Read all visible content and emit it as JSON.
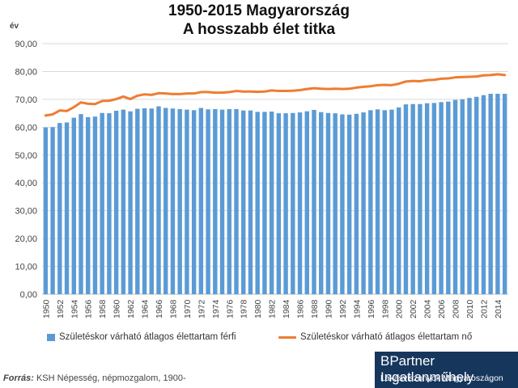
{
  "title_line1": "1950-2015 Magyarország",
  "title_line2": "A hosszabb élet titka",
  "source_label": "Forrás:",
  "source_text": "KSH Népesség, népmozgalom, 1900-",
  "brand_name": "BPartner Ingatlanműhely",
  "brand_tagline": "Lakásviszonyok Magyaroszágon",
  "colors": {
    "bars": "#5b9bd5",
    "line": "#ed7d31",
    "brand_bg": "#16365c"
  },
  "chart_data": {
    "type": "bar+line",
    "ylabel": "év",
    "ylim": [
      0,
      90
    ],
    "y_ticks": [
      "0,00",
      "10,00",
      "20,00",
      "30,00",
      "40,00",
      "50,00",
      "60,00",
      "70,00",
      "80,00",
      "90,00"
    ],
    "x": [
      1950,
      1951,
      1952,
      1953,
      1954,
      1955,
      1956,
      1957,
      1958,
      1959,
      1960,
      1961,
      1962,
      1963,
      1964,
      1965,
      1966,
      1967,
      1968,
      1969,
      1970,
      1971,
      1972,
      1973,
      1974,
      1975,
      1976,
      1977,
      1978,
      1979,
      1980,
      1981,
      1982,
      1983,
      1984,
      1985,
      1986,
      1987,
      1988,
      1989,
      1990,
      1991,
      1992,
      1993,
      1994,
      1995,
      1996,
      1997,
      1998,
      1999,
      2000,
      2001,
      2002,
      2003,
      2004,
      2005,
      2006,
      2007,
      2008,
      2009,
      2010,
      2011,
      2012,
      2013,
      2014,
      2015
    ],
    "x_tick_labels": [
      "1950",
      "1952",
      "1954",
      "1956",
      "1958",
      "1960",
      "1962",
      "1964",
      "1966",
      "1968",
      "1970",
      "1972",
      "1974",
      "1976",
      "1978",
      "1980",
      "1982",
      "1984",
      "1986",
      "1988",
      "1990",
      "1992",
      "1994",
      "1996",
      "1998",
      "2000",
      "2002",
      "2004",
      "2006",
      "2008",
      "2010",
      "2012",
      "2014"
    ],
    "series": [
      {
        "name": "Születéskor várható átlagos élettartam  férfi",
        "type": "bar",
        "values": [
          59.9,
          60.0,
          61.5,
          61.7,
          63.4,
          64.7,
          63.6,
          63.8,
          65.1,
          65.0,
          65.9,
          66.3,
          65.7,
          66.6,
          66.8,
          66.7,
          67.5,
          66.9,
          66.7,
          66.5,
          66.3,
          66.1,
          66.9,
          66.4,
          66.5,
          66.3,
          66.5,
          66.5,
          66.0,
          66.0,
          65.5,
          65.5,
          65.6,
          65.0,
          65.0,
          65.1,
          65.3,
          65.7,
          66.2,
          65.4,
          65.1,
          65.0,
          64.6,
          64.5,
          64.8,
          65.3,
          66.1,
          66.4,
          66.1,
          66.3,
          67.1,
          68.2,
          68.3,
          68.3,
          68.6,
          68.7,
          69.0,
          69.2,
          69.8,
          70.0,
          70.5,
          70.9,
          71.5,
          72.0,
          72.0,
          72.0
        ]
      },
      {
        "name": "Születéskor várható átlagos élettartam  nő",
        "type": "line",
        "values": [
          64.2,
          64.6,
          66.0,
          65.8,
          67.2,
          68.9,
          68.4,
          68.3,
          69.4,
          69.5,
          70.1,
          71.0,
          70.1,
          71.3,
          71.8,
          71.6,
          72.2,
          72.1,
          71.9,
          71.9,
          72.1,
          72.1,
          72.6,
          72.6,
          72.4,
          72.4,
          72.6,
          73.0,
          72.8,
          72.8,
          72.7,
          72.8,
          73.2,
          73.0,
          73.0,
          73.1,
          73.3,
          73.7,
          74.0,
          73.8,
          73.7,
          73.8,
          73.7,
          73.8,
          74.2,
          74.5,
          74.7,
          75.1,
          75.2,
          75.1,
          75.6,
          76.4,
          76.6,
          76.5,
          76.9,
          77.0,
          77.4,
          77.5,
          77.9,
          78.0,
          78.1,
          78.2,
          78.6,
          78.7,
          79.0,
          78.7
        ]
      }
    ]
  }
}
